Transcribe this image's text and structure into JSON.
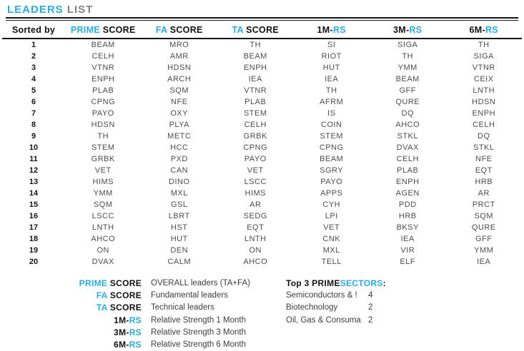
{
  "title": {
    "part1": "LEADERS",
    "part2": " LIST"
  },
  "colors": {
    "accent": "#29ABE2",
    "title_muted": "#808285",
    "ticker_text": "#4d4d4d"
  },
  "table": {
    "sorted_by": "Sorted by",
    "headers": [
      {
        "pre": "PRIME",
        "post": " SCORE"
      },
      {
        "pre": "FA",
        "post": " SCORE"
      },
      {
        "pre": "TA",
        "post": " SCORE"
      },
      {
        "pre": "1M-",
        "post": "RS"
      },
      {
        "pre": "3M-",
        "post": "RS"
      },
      {
        "pre": "6M-",
        "post": "RS"
      }
    ],
    "rows": [
      [
        "1",
        "BEAM",
        "MRO",
        "TH",
        "SI",
        "SIGA",
        "TH"
      ],
      [
        "2",
        "CELH",
        "AMR",
        "BEAM",
        "RIOT",
        "TH",
        "SIGA"
      ],
      [
        "3",
        "VTNR",
        "HDSN",
        "ENPH",
        "HUT",
        "YMM",
        "VTNR"
      ],
      [
        "4",
        "ENPH",
        "ARCH",
        "IEA",
        "IEA",
        "BEAM",
        "CEIX"
      ],
      [
        "5",
        "PLAB",
        "SQM",
        "VTNR",
        "TH",
        "GFF",
        "LNTH"
      ],
      [
        "6",
        "CPNG",
        "NFE",
        "PLAB",
        "AFRM",
        "QURE",
        "HDSN"
      ],
      [
        "7",
        "PAYO",
        "OXY",
        "STEM",
        "IS",
        "DQ",
        "ENPH"
      ],
      [
        "8",
        "HDSN",
        "PLYA",
        "CELH",
        "COIN",
        "AHCO",
        "CELH"
      ],
      [
        "9",
        "TH",
        "METC",
        "GRBK",
        "STEM",
        "STKL",
        "DQ"
      ],
      [
        "10",
        "STEM",
        "HCC",
        "CPNG",
        "CPNG",
        "DVAX",
        "STKL"
      ],
      [
        "11",
        "GRBK",
        "PXD",
        "PAYO",
        "BEAM",
        "CELH",
        "NFE"
      ],
      [
        "12",
        "VET",
        "CAN",
        "VET",
        "SGRY",
        "PLAB",
        "EQT"
      ],
      [
        "13",
        "HIMS",
        "DINO",
        "LSCC",
        "PAYO",
        "ENPH",
        "HRB"
      ],
      [
        "14",
        "YMM",
        "MXL",
        "HIMS",
        "APPS",
        "AGEN",
        "AR"
      ],
      [
        "15",
        "SQM",
        "GSL",
        "AR",
        "CYH",
        "PDD",
        "PRCT"
      ],
      [
        "16",
        "LSCC",
        "LBRT",
        "SEDG",
        "LPI",
        "HRB",
        "SQM"
      ],
      [
        "17",
        "LNTH",
        "HST",
        "EQT",
        "VET",
        "BKSY",
        "QURE"
      ],
      [
        "18",
        "AHCO",
        "HUT",
        "LNTH",
        "CNK",
        "IEA",
        "GFF"
      ],
      [
        "19",
        "ON",
        "DEN",
        "ON",
        "MXL",
        "VIR",
        "YMM"
      ],
      [
        "20",
        "DVAX",
        "CALM",
        "AHCO",
        "TELL",
        "ELF",
        "IEA"
      ]
    ]
  },
  "legend": {
    "items": [
      {
        "pre": "PRIME",
        "post": " SCORE",
        "desc": "OVERALL leaders (TA+FA)"
      },
      {
        "pre": "FA",
        "post": " SCORE",
        "desc": "Fundamental leaders"
      },
      {
        "pre": "TA",
        "post": " SCORE",
        "desc": "Technical leaders"
      },
      {
        "pre": "1M-",
        "post": "RS",
        "desc": "Relative Strength 1 Month"
      },
      {
        "pre": "3M-",
        "post": "RS",
        "desc": "Relative Strength 3 Month"
      },
      {
        "pre": "6M-",
        "post": "RS",
        "desc": "Relative Strength 6 Month"
      }
    ]
  },
  "top_sectors": {
    "title_pre": "Top 3 PRIME ",
    "title_accent": "SECTORS",
    "title_suffix": " :",
    "rows": [
      {
        "name": "Semiconductors & !",
        "count": "4"
      },
      {
        "name": "Biotechnology",
        "count": "2"
      },
      {
        "name": "Oil, Gas & Consuma",
        "count": "2"
      }
    ]
  }
}
